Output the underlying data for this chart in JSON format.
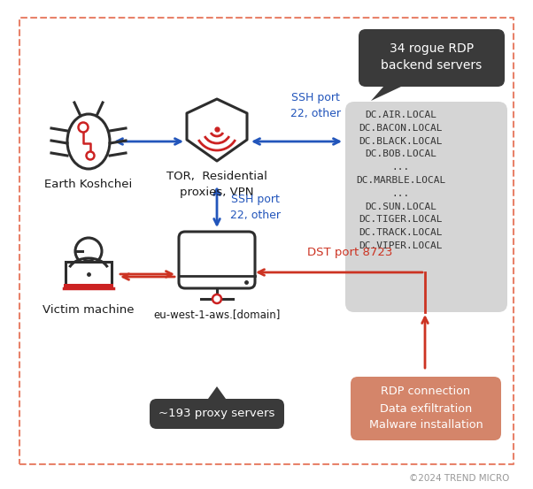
{
  "bg_color": "#ffffff",
  "border_color": "#e8826a",
  "footer": "©2024 TREND MICRO",
  "blue_arrow_color": "#2255bb",
  "red_arrow_color": "#cc3322",
  "dark_box_color": "#3a3a3a",
  "dark_box_text_color": "#ffffff",
  "gray_box_color": "#d5d5d5",
  "gray_box_text_color": "#333333",
  "salmon_box_color": "#d4856a",
  "salmon_box_text_color": "#ffffff",
  "label_color": "#1a1a1a",
  "ssh_label_color": "#2255bb",
  "dst_label_color": "#cc3322",
  "node_color": "#2d2d2d",
  "red_accent": "#cc2222",
  "rogue_box_label": "34 rogue RDP\nbackend servers",
  "dc_servers_list": "DC.AIR.LOCAL\nDC.BACON.LOCAL\nDC.BLACK.LOCAL\nDC.BOB.LOCAL\n...\nDC.MARBLE.LOCAL\n...\nDC.SUN.LOCAL\nDC.TIGER.LOCAL\nDC.TRACK.LOCAL\nDC.VIPER.LOCAL",
  "proxy_box_label": "~193 proxy servers",
  "rdp_box_label": "RDP connection\nData exfiltration\nMalware installation",
  "earth_label": "Earth Koshchei",
  "tor_label": "TOR,  Residential\nproxies, VPN",
  "victim_label": "Victim machine",
  "aws_label": "eu-west-1-aws.[domain]",
  "ssh_top_label": "SSH port\n22, other",
  "ssh_bottom_label": "SSH port\n22, other",
  "dst_label": "DST port 8723"
}
